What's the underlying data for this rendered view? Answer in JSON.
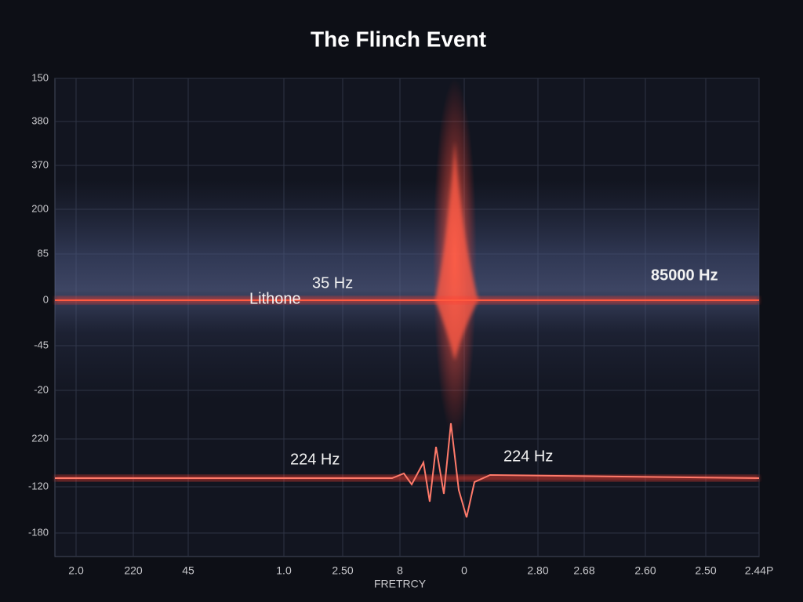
{
  "title": "The Flinch Event",
  "y_axis_labels": [
    "150",
    "380",
    "370",
    "200",
    "85",
    "0",
    "-45",
    "-20",
    "220",
    "-120",
    "-180"
  ],
  "x_axis_labels": [
    "2.0",
    "220",
    "45",
    "1.0",
    "2.50",
    "8",
    "0",
    "2.80",
    "2.68",
    "2.60",
    "2.50",
    "2.44P"
  ],
  "x_axis_title": "FRETRCY",
  "annotations": [
    "35 Hz",
    "Lithone",
    "85000 Hz",
    "224 Hz",
    "224 Hz"
  ]
}
